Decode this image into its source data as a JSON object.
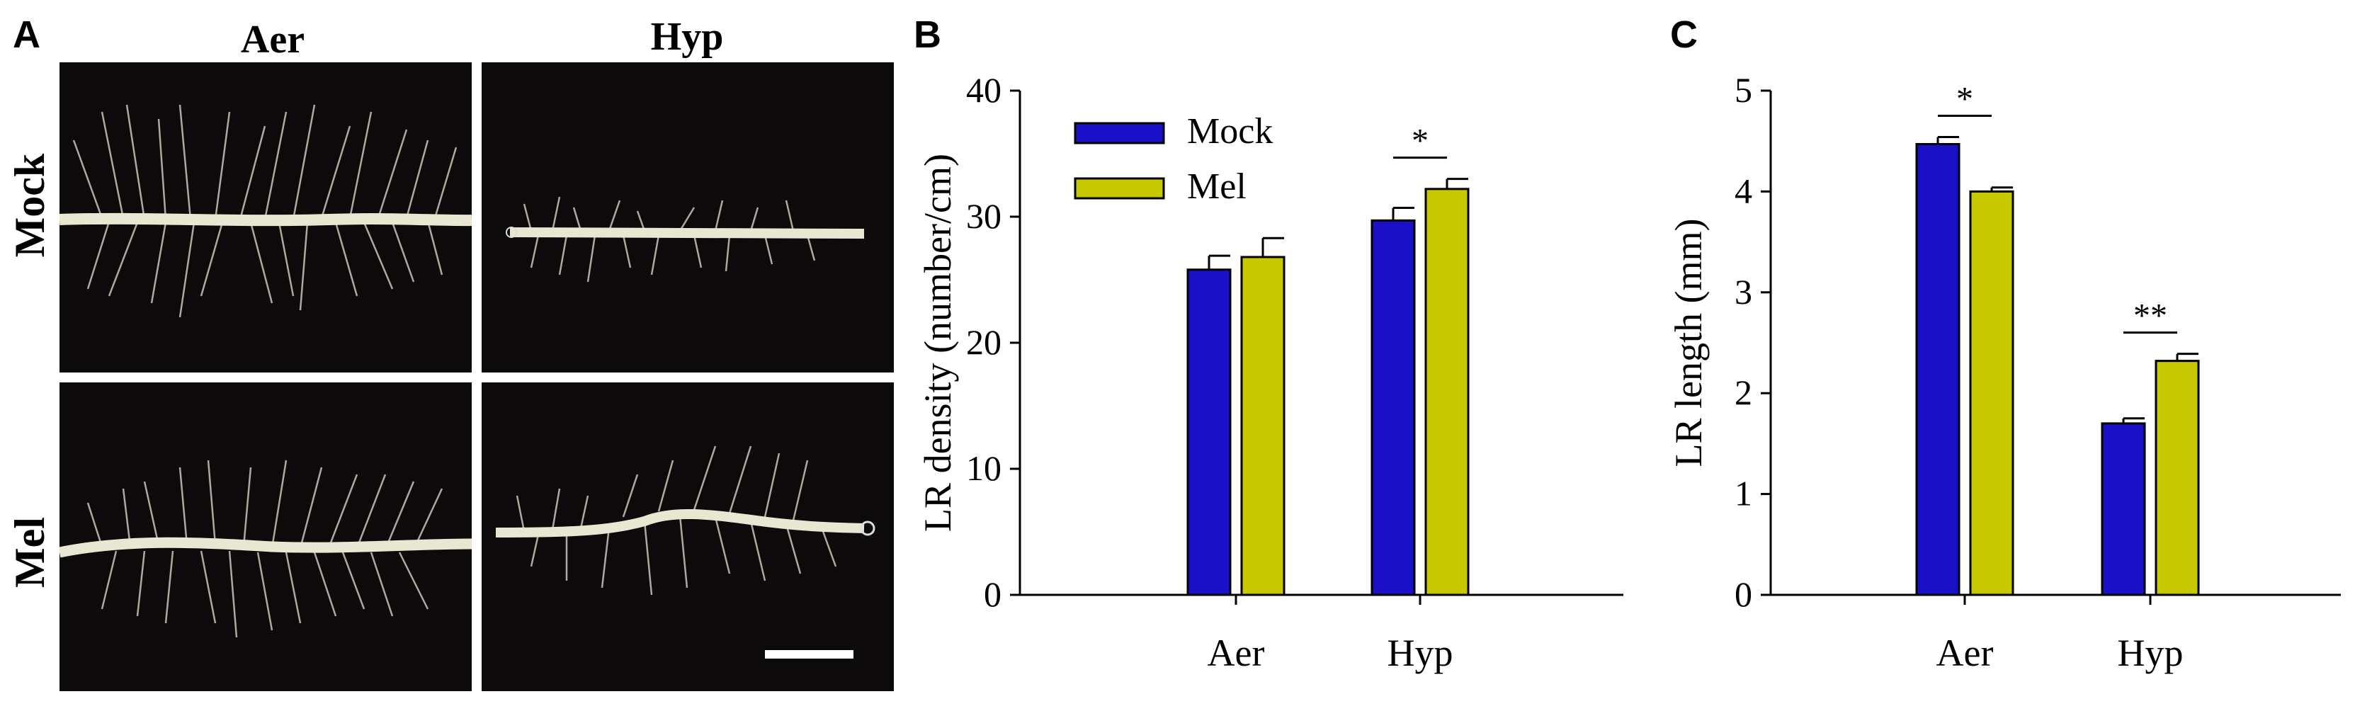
{
  "panel_a": {
    "letter": "A",
    "col_headers": [
      "Aer",
      "Hyp"
    ],
    "row_headers": [
      "Mock",
      "Mel"
    ]
  },
  "chart_data": [
    {
      "panel": "B",
      "type": "bar",
      "categories": [
        "Aer",
        "Hyp"
      ],
      "ylabel": "LR density (number/cm)",
      "xlabel": "",
      "ylim": [
        0,
        40
      ],
      "yticks": [
        0,
        10,
        20,
        30,
        40
      ],
      "series": [
        {
          "name": "Mock",
          "color": "#1a10c8",
          "values": [
            25.8,
            29.7
          ],
          "errors": [
            1.1,
            1.0
          ]
        },
        {
          "name": "Mel",
          "color": "#c8c800",
          "values": [
            26.8,
            32.2
          ],
          "errors": [
            1.5,
            0.8
          ]
        }
      ],
      "significance": [
        {
          "category": "Hyp",
          "label": "*"
        }
      ],
      "legend": "top-left"
    },
    {
      "panel": "C",
      "type": "bar",
      "categories": [
        "Aer",
        "Hyp"
      ],
      "ylabel": "LR length (mm)",
      "xlabel": "",
      "ylim": [
        0,
        5
      ],
      "yticks": [
        0,
        1,
        2,
        3,
        4,
        5
      ],
      "series": [
        {
          "name": "Mock",
          "color": "#1a10c8",
          "values": [
            4.47,
            1.7
          ],
          "errors": [
            0.07,
            0.05
          ]
        },
        {
          "name": "Mel",
          "color": "#c8c800",
          "values": [
            4.0,
            2.32
          ],
          "errors": [
            0.04,
            0.07
          ]
        }
      ],
      "significance": [
        {
          "category": "Aer",
          "label": "*"
        },
        {
          "category": "Hyp",
          "label": "**"
        }
      ]
    }
  ]
}
